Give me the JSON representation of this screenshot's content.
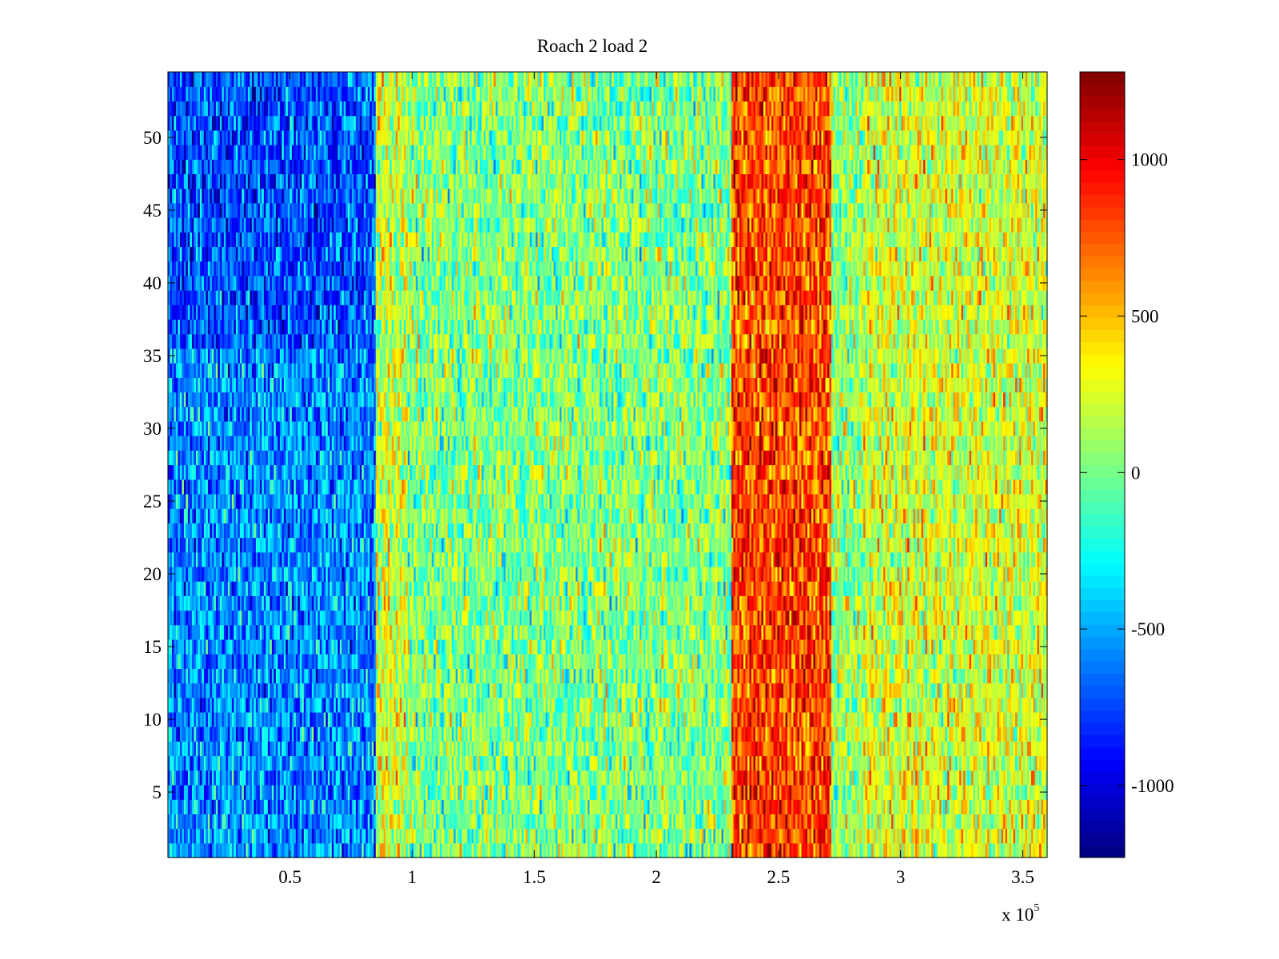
{
  "chart_data": {
    "type": "heatmap",
    "title": "Roach 2 load 2",
    "xlabel": "",
    "ylabel": "",
    "x_multiplier_label": "x 10",
    "x_multiplier_exponent": "5",
    "xlim": [
      0,
      3.6
    ],
    "ylim": [
      0.5,
      54.5
    ],
    "x_ticks": [
      0.5,
      1,
      1.5,
      2,
      2.5,
      3,
      3.5
    ],
    "x_tick_labels": [
      "0.5",
      "1",
      "1.5",
      "2",
      "2.5",
      "3",
      "3.5"
    ],
    "y_ticks": [
      5,
      10,
      15,
      20,
      25,
      30,
      35,
      40,
      45,
      50
    ],
    "y_tick_labels": [
      "5",
      "10",
      "15",
      "20",
      "25",
      "30",
      "35",
      "40",
      "45",
      "50"
    ],
    "colorbar": {
      "colormap": "jet",
      "clim": [
        -1230,
        1280
      ],
      "ticks": [
        -1000,
        -500,
        0,
        500,
        1000
      ],
      "tick_labels": [
        "-1000",
        "-500",
        "0",
        "500",
        "1000"
      ]
    },
    "bands": [
      {
        "x_range": [
          0,
          0.85
        ],
        "mean": -560,
        "note": "blue band, deeper blue for rows 36-54"
      },
      {
        "x_range": [
          0.85,
          0.98
        ],
        "mean": 220
      },
      {
        "x_range": [
          0.98,
          2.31
        ],
        "mean": 30
      },
      {
        "x_range": [
          2.31,
          2.72
        ],
        "mean": 800
      },
      {
        "x_range": [
          2.72,
          2.85
        ],
        "mean": 80
      },
      {
        "x_range": [
          2.85,
          3.6
        ],
        "mean": 250
      }
    ],
    "grid": false,
    "legend": "none"
  }
}
